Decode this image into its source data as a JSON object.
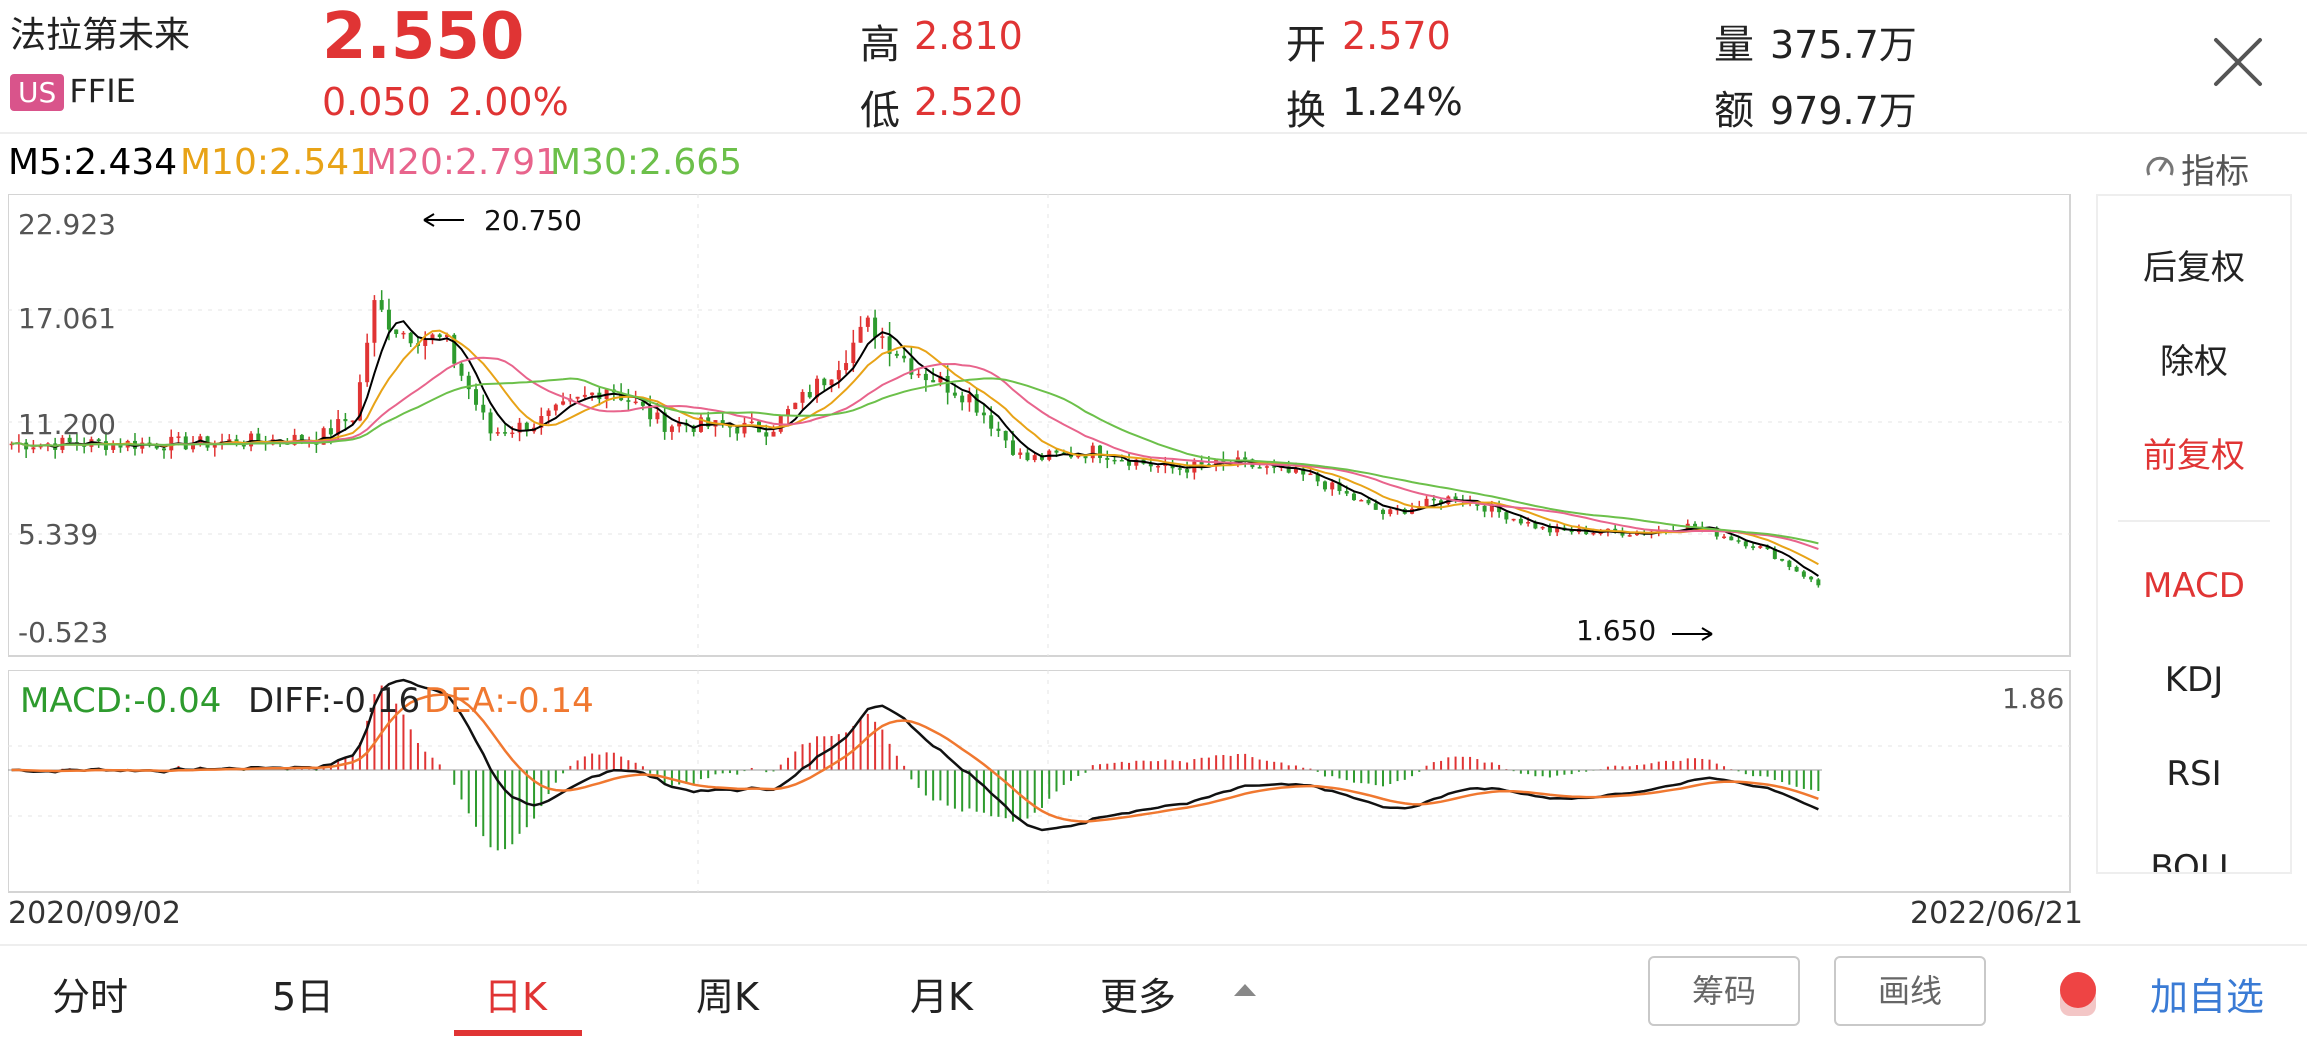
{
  "stock": {
    "name": "法拉第未来",
    "market_badge": "US",
    "ticker": "FFIE",
    "price": "2.550",
    "change": "0.050",
    "change_pct": "2.00%"
  },
  "quotes": {
    "high_label": "高",
    "high": "2.810",
    "low_label": "低",
    "low": "2.520",
    "open_label": "开",
    "open": "2.570",
    "turnover_label": "换",
    "turnover": "1.24%",
    "volume_label": "量",
    "volume": "375.7万",
    "amount_label": "额",
    "amount": "979.7万"
  },
  "ma_legend": {
    "m5": "M5:2.434",
    "m10": "M10:2.541",
    "m20": "M20:2.791",
    "m30": "M30:2.665",
    "indicator_label": "指标"
  },
  "main_chart": {
    "y_labels": [
      "22.923",
      "17.061",
      "11.200",
      "5.339",
      "-0.523"
    ],
    "high_marker": "20.750",
    "low_marker": "1.650"
  },
  "macd_legend": {
    "macd": "MACD:-0.04",
    "diff": "DIFF:-0.16",
    "dea": "DEA:-0.14",
    "max": "1.86"
  },
  "dates": {
    "start": "2020/09/02",
    "end": "2022/06/21"
  },
  "side_panel": {
    "items": [
      "后复权",
      "除权",
      "前复权",
      "MACD",
      "KDJ",
      "RSI",
      "BOLL"
    ]
  },
  "bottom_tabs": [
    "分时",
    "5日",
    "日K",
    "周K",
    "月K",
    "更多"
  ],
  "bottom_buttons": {
    "chips": "筹码",
    "draw": "画线",
    "add_watchlist": "加自选"
  },
  "colors": {
    "up": "#e03434",
    "down": "#2e9b2e",
    "m5": "#000000",
    "m10": "#e8a317",
    "m20": "#e8648c",
    "m30": "#6cc04a",
    "dea": "#f07830",
    "accent_blue": "#3a7bd5"
  }
}
